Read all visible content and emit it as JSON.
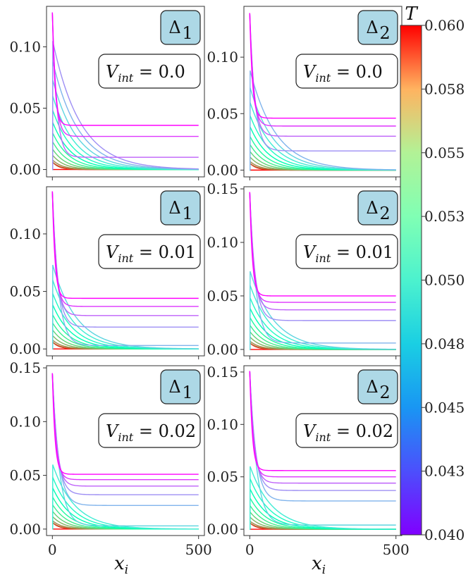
{
  "chart_data": {
    "type": "line",
    "xlabel": "x_i",
    "x_ticks": [
      0,
      500
    ],
    "x_range": [
      -20,
      520
    ],
    "colorbar": {
      "label": "T",
      "range": [
        0.04,
        0.06
      ],
      "tick_labels": [
        "0.040",
        "0.043",
        "0.045",
        "0.048",
        "0.050",
        "0.053",
        "0.055",
        "0.058",
        "0.060"
      ],
      "tick_values": [
        0.04,
        0.0425,
        0.045,
        0.0475,
        0.05,
        0.0525,
        0.055,
        0.0575,
        0.06
      ]
    },
    "T_values": [
      0.04,
      0.0413,
      0.0425,
      0.0438,
      0.045,
      0.0463,
      0.0475,
      0.0488,
      0.05,
      0.0513,
      0.0525,
      0.0538,
      0.055,
      0.0563,
      0.0575,
      0.0588,
      0.06
    ],
    "panels": [
      {
        "gap": "Δ1",
        "gap_sub": "1",
        "vint": "0.0",
        "ylim": [
          -0.006,
          0.133
        ],
        "yticks": [
          0.0,
          0.05,
          0.1
        ],
        "ytick_labels": [
          "0.00",
          "0.05",
          "0.10"
        ],
        "peak": 0.128,
        "plateaus": [
          0.036,
          0.027,
          0.01,
          0.0,
          0.0,
          0.0,
          0.0,
          0.0,
          0.0,
          0.0,
          0.0,
          0.0,
          0.0,
          0.0,
          0.0,
          0.0,
          0.0
        ]
      },
      {
        "gap": "Δ2",
        "gap_sub": "2",
        "vint": "0.0",
        "ylim": [
          -0.006,
          0.145
        ],
        "yticks": [
          0.0,
          0.05,
          0.1
        ],
        "ytick_labels": [
          "0.00",
          "0.05",
          "0.10"
        ],
        "peak": 0.139,
        "plateaus": [
          0.046,
          0.039,
          0.03,
          0.017,
          0.0,
          0.0,
          0.0,
          0.0,
          0.0,
          0.0,
          0.0,
          0.0,
          0.0,
          0.0,
          0.0,
          0.0,
          0.0
        ]
      },
      {
        "gap": "Δ1",
        "gap_sub": "1",
        "vint": "0.01",
        "ylim": [
          -0.006,
          0.141
        ],
        "yticks": [
          0.0,
          0.05,
          0.1
        ],
        "ytick_labels": [
          "0.00",
          "0.05",
          "0.10"
        ],
        "peak": 0.137,
        "plateaus": [
          0.044,
          0.037,
          0.029,
          0.019,
          0.003,
          0.0,
          0.0,
          0.0,
          0.0,
          0.0,
          0.0,
          0.0,
          0.0,
          0.0,
          0.0,
          0.0,
          0.0
        ]
      },
      {
        "gap": "Δ2",
        "gap_sub": "2",
        "vint": "0.01",
        "ylim": [
          -0.006,
          0.152
        ],
        "yticks": [
          0.0,
          0.05,
          0.1,
          0.15
        ],
        "ytick_labels": [
          "0.00",
          "0.05",
          "0.10",
          "0.15"
        ],
        "peak": 0.147,
        "plateaus": [
          0.05,
          0.044,
          0.037,
          0.027,
          0.006,
          0.0,
          0.0,
          0.0,
          0.0,
          0.0,
          0.0,
          0.0,
          0.0,
          0.0,
          0.0,
          0.0,
          0.0
        ]
      },
      {
        "gap": "Δ1",
        "gap_sub": "1",
        "vint": "0.02",
        "ylim": [
          -0.006,
          0.152
        ],
        "yticks": [
          0.0,
          0.05,
          0.1,
          0.15
        ],
        "ytick_labels": [
          "0.00",
          "0.05",
          "0.10",
          "0.15"
        ],
        "peak": 0.145,
        "plateaus": [
          0.051,
          0.046,
          0.04,
          0.032,
          0.022,
          0.003,
          0.0,
          0.0,
          0.0,
          0.0,
          0.0,
          0.0,
          0.0,
          0.0,
          0.0,
          0.0,
          0.0
        ]
      },
      {
        "gap": "Δ2",
        "gap_sub": "2",
        "vint": "0.02",
        "ylim": [
          -0.006,
          0.156
        ],
        "yticks": [
          0.0,
          0.05,
          0.1,
          0.15
        ],
        "ytick_labels": [
          "0.00",
          "0.05",
          "0.10",
          "0.15"
        ],
        "peak": 0.151,
        "plateaus": [
          0.056,
          0.05,
          0.044,
          0.037,
          0.027,
          0.004,
          0.0,
          0.0,
          0.0,
          0.0,
          0.0,
          0.0,
          0.0,
          0.0,
          0.0,
          0.0,
          0.0
        ]
      }
    ]
  }
}
